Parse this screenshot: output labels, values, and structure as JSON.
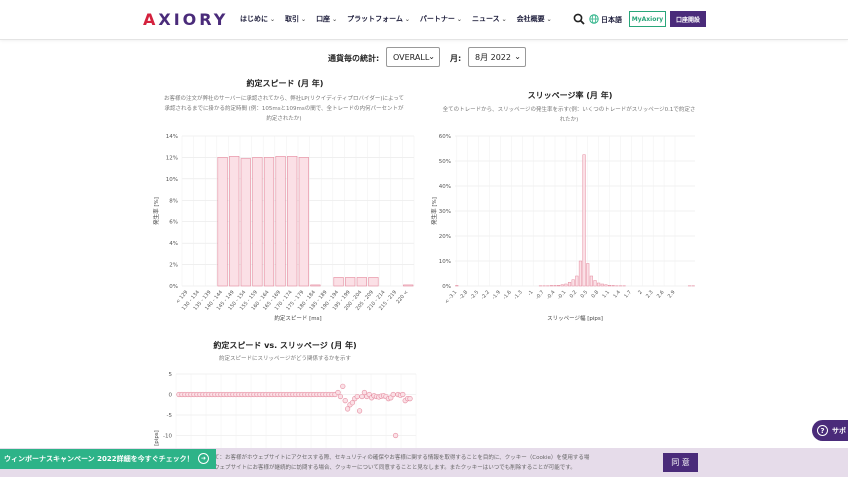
{
  "header": {
    "logo": "AXIORY",
    "nav": [
      "はじめに",
      "取引",
      "口座",
      "プラットフォーム",
      "パートナー",
      "ニュース",
      "会社概要"
    ],
    "lang": "日本語",
    "myaxiory": "MyAxiory",
    "open_account": "口座開設"
  },
  "filters": {
    "stats_label": "通貨毎の統計:",
    "stats_value": "OVERALL",
    "month_label": "月:",
    "month_value": "8月 2022"
  },
  "chart1": {
    "title": "約定スピード (月 年)",
    "subtitle": "お客様の注文が弊社のサーバーに承認されてから、弊社LP(リクイディティプロバイダー)によって承認されるまでに掛かる約定時間 (例：105msと109msの間で、全トレードの内何パーセントが約定されたか)"
  },
  "chart2": {
    "title": "スリッページ率 (月 年)",
    "subtitle": "全てのトレードから、スリッページの発生率を示す(例：いくつのトレードがスリッページ0.1で約定されたか)"
  },
  "chart3": {
    "title": "約定スピード vs. スリッページ (月 年)",
    "subtitle": "約定スピードにスリッページがどう関係するかを示す"
  },
  "chart_data": [
    {
      "type": "bar",
      "title": "約定スピード (月 年)",
      "xlabel": "約定スピード [ms]",
      "ylabel": "発生率 [%]",
      "ylim": [
        0,
        14
      ],
      "yticks": [
        "0%",
        "2%",
        "4%",
        "6%",
        "8%",
        "10%",
        "12%",
        "14%"
      ],
      "categories": [
        "< 129",
        "130 - 134",
        "135 - 139",
        "140 - 144",
        "145 - 149",
        "150 - 154",
        "155 - 159",
        "160 - 164",
        "165 - 169",
        "170 - 174",
        "175 - 179",
        "180 - 184",
        "185 - 189",
        "190 - 194",
        "195 - 199",
        "200 - 204",
        "205 - 209",
        "210 - 214",
        "215 - 219",
        "220 <"
      ],
      "xtick_labels": [
        "< 129",
        "130 - 134",
        "135 - 139",
        "140 - 144",
        "145 - 149",
        "150 - 154",
        "155 - 159",
        "160 - 164",
        "165 - 169",
        "170 - 174",
        "175 - 179",
        "180 - 184",
        "185 - 189",
        "190 - 194",
        "195 - 199",
        "200 - 204",
        "205 - 209",
        "210 - 214",
        "215 - 219",
        "220 <"
      ],
      "values": [
        0,
        0,
        0,
        12.0,
        12.1,
        11.9,
        12.0,
        12.0,
        12.1,
        12.1,
        12.0,
        0.1,
        0,
        0.8,
        0.8,
        0.8,
        0.8,
        0,
        0,
        0.1
      ]
    },
    {
      "type": "bar",
      "title": "スリッページ率 (月 年)",
      "xlabel": "スリッページ幅 [pips]",
      "ylabel": "発生率 [%]",
      "ylim": [
        0,
        60
      ],
      "yticks": [
        "0%",
        "10%",
        "20%",
        "30%",
        "40%",
        "50%",
        "60%"
      ],
      "xtick_labels": [
        "< -3.1",
        "-2.8",
        "-2.5",
        "-2.2",
        "-1.9",
        "-1.6",
        "-1.3",
        "-1",
        "-0.7",
        "-0.4",
        "-0.1",
        "0.2",
        "0.5",
        "0.8",
        "1.1",
        "1.4",
        "1.7",
        "2",
        "2.3",
        "2.6",
        "2.9"
      ],
      "x_from": -3.2,
      "x_step": 0.1,
      "values": [
        0.2,
        0,
        0,
        0,
        0,
        0,
        0,
        0,
        0,
        0,
        0,
        0,
        0,
        0,
        0,
        0,
        0,
        0,
        0,
        0,
        0,
        0,
        0,
        0.1,
        0.1,
        0.1,
        0.2,
        0.2,
        0.3,
        0.5,
        0.8,
        1.5,
        2.5,
        4.0,
        10.0,
        52.5,
        9.0,
        4.0,
        2.2,
        1.2,
        0.8,
        0.5,
        0.3,
        0.2,
        0.1,
        0.1,
        0.1,
        0,
        0,
        0,
        0,
        0,
        0,
        0,
        0,
        0,
        0,
        0,
        0,
        0,
        0,
        0,
        0,
        0,
        0.1,
        0.1
      ]
    },
    {
      "type": "scatter",
      "title": "約定スピード vs. スリッページ (月 年)",
      "ylabel": "[pips]",
      "ylim": [
        -12,
        5
      ],
      "yticks": [
        "5",
        "0",
        "-5",
        "-10"
      ],
      "xlim": [
        0,
        80
      ],
      "points": [
        [
          1,
          0
        ],
        [
          2,
          0
        ],
        [
          3,
          0
        ],
        [
          4,
          0
        ],
        [
          5,
          0
        ],
        [
          6,
          0
        ],
        [
          7,
          0
        ],
        [
          8,
          0
        ],
        [
          9,
          0
        ],
        [
          10,
          0
        ],
        [
          11,
          0
        ],
        [
          12,
          0
        ],
        [
          13,
          0
        ],
        [
          14,
          0
        ],
        [
          15,
          0
        ],
        [
          16,
          0
        ],
        [
          17,
          0
        ],
        [
          18,
          0
        ],
        [
          19,
          0
        ],
        [
          20,
          0
        ],
        [
          21,
          0
        ],
        [
          22,
          0
        ],
        [
          23,
          0
        ],
        [
          24,
          0
        ],
        [
          25,
          0
        ],
        [
          26,
          0
        ],
        [
          27,
          0
        ],
        [
          28,
          0
        ],
        [
          29,
          0
        ],
        [
          30,
          0
        ],
        [
          31,
          0
        ],
        [
          32,
          0
        ],
        [
          33,
          0
        ],
        [
          34,
          0
        ],
        [
          35,
          0
        ],
        [
          36,
          0
        ],
        [
          37,
          0
        ],
        [
          38,
          0
        ],
        [
          39,
          0
        ],
        [
          40,
          0
        ],
        [
          41,
          0
        ],
        [
          42,
          0
        ],
        [
          43,
          0
        ],
        [
          44,
          0
        ],
        [
          45,
          0
        ],
        [
          46,
          0
        ],
        [
          47,
          0
        ],
        [
          48,
          0
        ],
        [
          49,
          0
        ],
        [
          50,
          0
        ],
        [
          51,
          0
        ],
        [
          52,
          0
        ],
        [
          53,
          0
        ],
        [
          54,
          0.5
        ],
        [
          54.8,
          -0.5
        ],
        [
          55.6,
          2.0
        ],
        [
          56.4,
          -1.5
        ],
        [
          57.2,
          -3.5
        ],
        [
          58,
          -2.5
        ],
        [
          58.8,
          -2.0
        ],
        [
          59.6,
          -1.0
        ],
        [
          60.4,
          -0.5
        ],
        [
          61.2,
          -4.0
        ],
        [
          62,
          -0.5
        ],
        [
          62.8,
          0.5
        ],
        [
          63.6,
          -0.5
        ],
        [
          64.4,
          0
        ],
        [
          65.2,
          -0.8
        ],
        [
          66,
          -0.3
        ],
        [
          66.8,
          -0.5
        ],
        [
          67.6,
          -0.6
        ],
        [
          68.4,
          -0.4
        ],
        [
          69.2,
          -0.3
        ],
        [
          70,
          -0.5
        ],
        [
          70.8,
          -1.0
        ],
        [
          71.6,
          -0.8
        ],
        [
          72.4,
          0
        ],
        [
          73.2,
          -10.0
        ],
        [
          74,
          0
        ],
        [
          74.8,
          -0.2
        ],
        [
          75.6,
          0
        ],
        [
          76.4,
          -1.5
        ],
        [
          77.2,
          -1.0
        ],
        [
          78,
          -1.0
        ]
      ]
    }
  ],
  "cookie": {
    "text_line1": "て：お客様がホウェブサイトにアクセスする際、セキュリティの確保やお客様に関する情報を取得することを目的に、クッキー（Cookie）を使用する場",
    "text_line2": "ウェブサイトにお客様が継続的に訪問する場合、クッキーについて同意することと見なします。またクッキーはいつでも削除することが可能です。",
    "agree": "同 意"
  },
  "promo": {
    "text": "ウィンボーナスキャンペーン 2022詳細を今すぐチェック！"
  },
  "support": {
    "label": "サポ"
  },
  "colors": {
    "brand_purple": "#4a2b7a",
    "bar_fill": "#fbe0e6",
    "bar_stroke": "#e48a9e",
    "promo_green": "#2db388"
  }
}
